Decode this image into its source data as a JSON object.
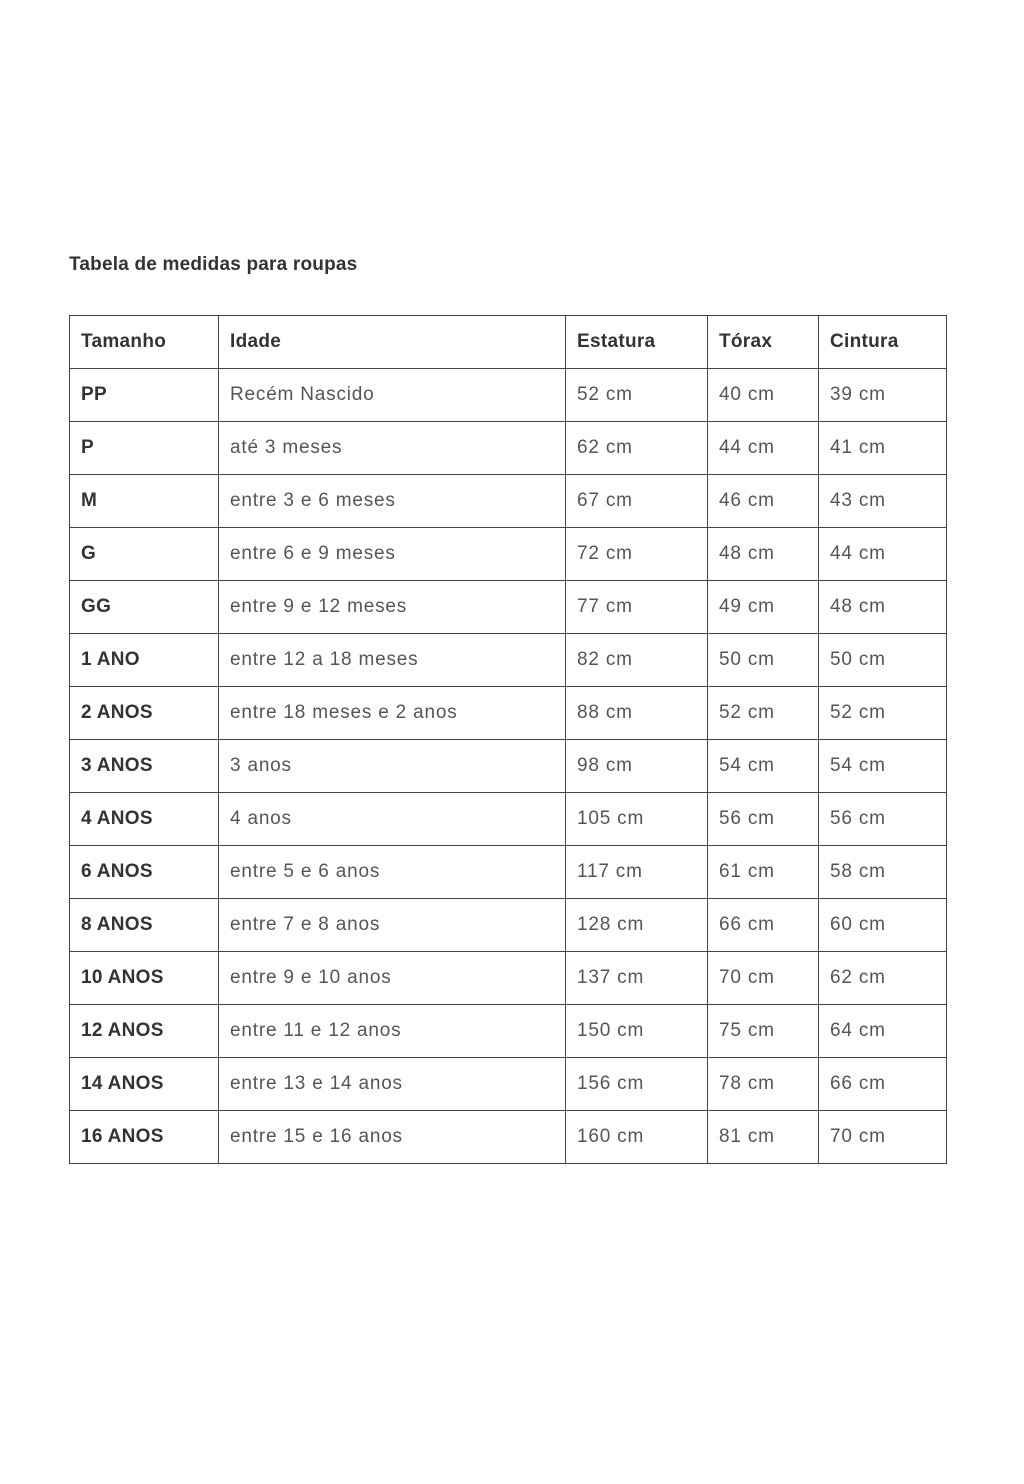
{
  "title": "Tabela de medidas para roupas",
  "table": {
    "headers": [
      "Tamanho",
      "Idade",
      "Estatura",
      "Tórax",
      "Cintura"
    ],
    "rows": [
      [
        "PP",
        "Recém Nascido",
        "52 cm",
        "40 cm",
        "39 cm"
      ],
      [
        "P",
        "até 3 meses",
        "62 cm",
        "44 cm",
        "41 cm"
      ],
      [
        "M",
        "entre 3 e 6 meses",
        "67 cm",
        "46 cm",
        "43 cm"
      ],
      [
        "G",
        "entre 6 e 9 meses",
        "72 cm",
        "48 cm",
        "44 cm"
      ],
      [
        "GG",
        "entre 9 e 12 meses",
        "77 cm",
        "49 cm",
        "48 cm"
      ],
      [
        "1 ANO",
        "entre 12 a 18 meses",
        "82 cm",
        "50 cm",
        "50 cm"
      ],
      [
        "2 ANOS",
        "entre 18 meses e 2 anos",
        "88 cm",
        "52 cm",
        "52 cm"
      ],
      [
        "3 ANOS",
        "3 anos",
        "98 cm",
        "54 cm",
        "54 cm"
      ],
      [
        "4 ANOS",
        "4 anos",
        "105 cm",
        "56 cm",
        "56 cm"
      ],
      [
        "6 ANOS",
        "entre 5 e 6 anos",
        "117 cm",
        "61 cm",
        "58 cm"
      ],
      [
        "8 ANOS",
        "entre 7 e 8 anos",
        "128 cm",
        "66 cm",
        "60 cm"
      ],
      [
        "10 ANOS",
        "entre 9 e 10 anos",
        "137 cm",
        "70 cm",
        "62 cm"
      ],
      [
        "12 ANOS",
        "entre 11 e 12 anos",
        "150 cm",
        "75 cm",
        "64 cm"
      ],
      [
        "14 ANOS",
        "entre 13 e 14 anos",
        "156 cm",
        "78 cm",
        "66 cm"
      ],
      [
        "16 ANOS",
        "entre 15 e 16 anos",
        "160 cm",
        "81 cm",
        "70 cm"
      ]
    ]
  }
}
